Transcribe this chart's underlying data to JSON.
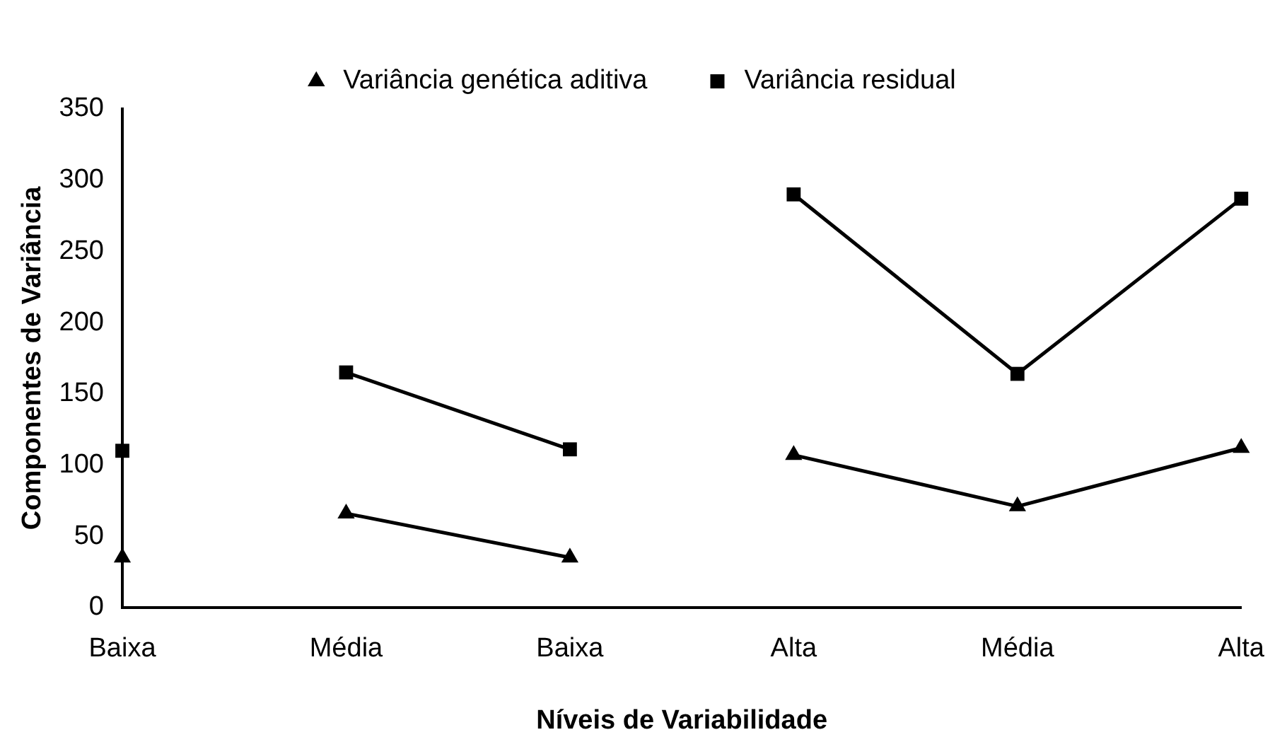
{
  "chart_data": {
    "type": "line",
    "xlabel": "Níveis de Variabilidade",
    "ylabel": "Componentes de Variância",
    "categories": [
      "Baixa",
      "Média",
      "Baixa",
      "Alta",
      "Média",
      "Alta"
    ],
    "ylim": [
      0,
      350
    ],
    "yticks": [
      0,
      50,
      100,
      150,
      200,
      250,
      300,
      350
    ],
    "grid": false,
    "legend": "top",
    "series": [
      {
        "name": "Variância genética aditiva",
        "color": "#000000",
        "marker": "triangle",
        "values": [
          35,
          null,
          null,
          null,
          null,
          null
        ]
      },
      {
        "color": "#000000",
        "marker": "triangle",
        "values": [
          null,
          66,
          35,
          null,
          null,
          null
        ]
      },
      {
        "color": "#000000",
        "marker": "triangle",
        "values": [
          null,
          null,
          null,
          107,
          71,
          112
        ]
      },
      {
        "name": "Variância residual",
        "color": "#000000",
        "marker": "square",
        "values": [
          110,
          null,
          null,
          null,
          null,
          null
        ]
      },
      {
        "color": "#000000",
        "marker": "square",
        "values": [
          null,
          165,
          111,
          null,
          null,
          null
        ]
      },
      {
        "color": "#000000",
        "marker": "square",
        "values": [
          null,
          null,
          null,
          290,
          164,
          287
        ]
      }
    ]
  }
}
